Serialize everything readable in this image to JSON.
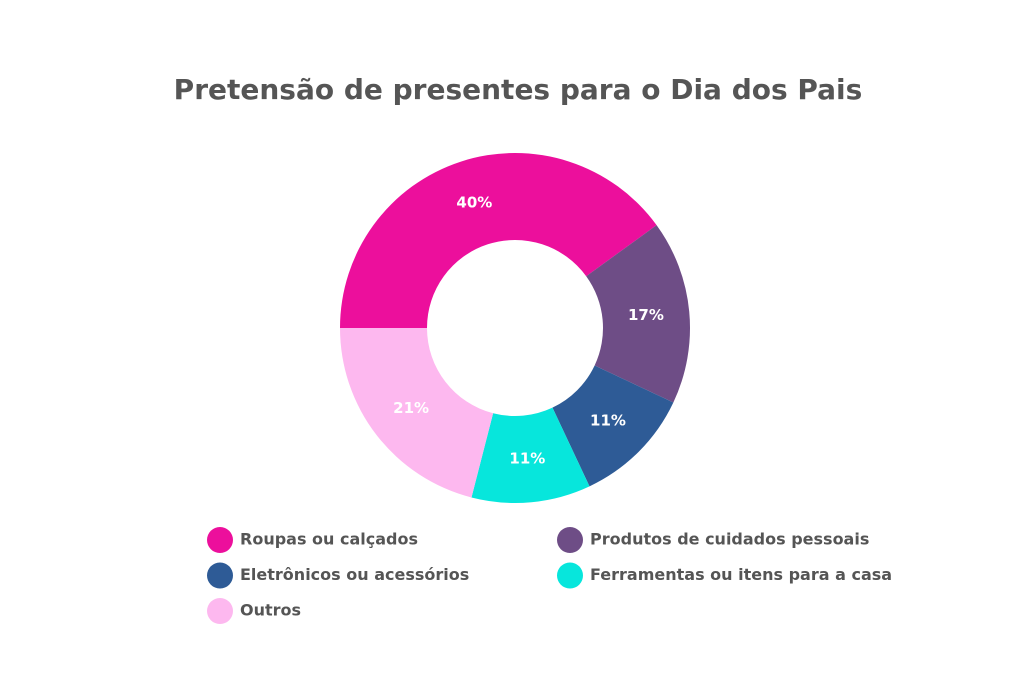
{
  "chart_data": {
    "type": "donut",
    "title": "Pretensão de presentes para o Dia dos Pais",
    "categories": [
      "Roupas ou calçados",
      "Produtos de cuidados pessoais",
      "Eletrônicos ou acessórios",
      "Ferramentas ou itens para a casa",
      "Outros"
    ],
    "values": [
      40,
      17,
      11,
      11,
      21
    ],
    "value_labels": [
      "40%",
      "17%",
      "11%",
      "11%",
      "21%"
    ],
    "colors": [
      "#ec0f9c",
      "#6e4d86",
      "#2e5b96",
      "#07e6dc",
      "#fdb8ef"
    ]
  }
}
